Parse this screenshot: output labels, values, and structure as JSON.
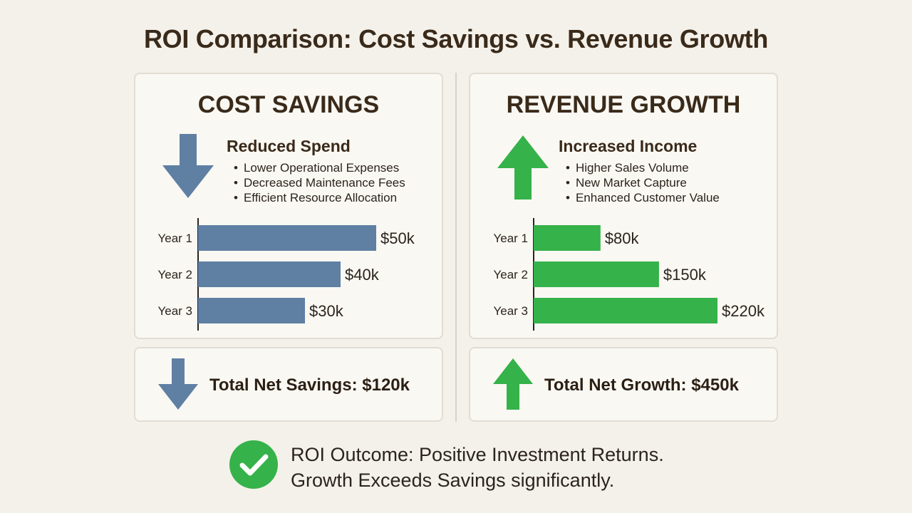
{
  "title": "ROI Comparison: Cost Savings vs. Revenue Growth",
  "colors": {
    "savings": "#5f7fa3",
    "growth": "#35b24a",
    "check": "#35b24a"
  },
  "panels": {
    "savings": {
      "heading": "COST SAVINGS",
      "icon": "arrow-down-icon",
      "subtitle": "Reduced Spend",
      "bullets": [
        "Lower Operational Expenses",
        "Decreased Maintenance Fees",
        "Efficient Resource Allocation"
      ],
      "total": "Total Net Savings: $120k"
    },
    "growth": {
      "heading": "REVENUE GROWTH",
      "icon": "arrow-up-icon",
      "subtitle": "Increased Income",
      "bullets": [
        "Higher Sales Volume",
        "New Market Capture",
        "Enhanced Customer Value"
      ],
      "total": "Total Net Growth: $450k"
    }
  },
  "outcome": {
    "icon": "checkmark-circle-icon",
    "line1": "ROI Outcome: Positive Investment Returns.",
    "line2": "Growth Exceeds Savings significantly."
  },
  "chart_data": [
    {
      "type": "bar",
      "orientation": "horizontal",
      "categories": [
        "Year 1",
        "Year 2",
        "Year 3"
      ],
      "values": [
        50,
        40,
        30
      ],
      "labels": [
        "$50k",
        "$40k",
        "$30k"
      ],
      "unit": "$k",
      "color": "#5f7fa3"
    },
    {
      "type": "bar",
      "orientation": "horizontal",
      "categories": [
        "Year 1",
        "Year 2",
        "Year 3"
      ],
      "values": [
        80,
        150,
        220
      ],
      "labels": [
        "$80k",
        "$150k",
        "$220k"
      ],
      "unit": "$k",
      "color": "#35b24a"
    }
  ]
}
